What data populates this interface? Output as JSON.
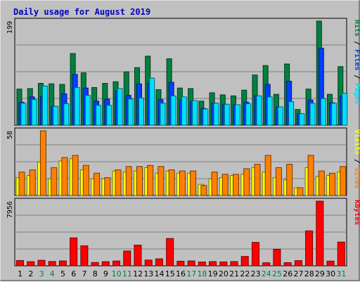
{
  "chart_data": {
    "type": "bar",
    "title": "Daily usage for August 2019",
    "days": [
      "1",
      "2",
      "3",
      "4",
      "5",
      "6",
      "7",
      "8",
      "9",
      "10",
      "11",
      "12",
      "13",
      "14",
      "15",
      "16",
      "17",
      "18",
      "19",
      "20",
      "21",
      "22",
      "23",
      "24",
      "25",
      "26",
      "27",
      "28",
      "29",
      "30",
      "31"
    ],
    "weekend_days": [
      "3",
      "4",
      "10",
      "11",
      "17",
      "18",
      "24",
      "25",
      "31"
    ],
    "colors": {
      "hits": "#008040",
      "files": "#0040ff",
      "pages": "#00e0ff",
      "visits": "#ffff00",
      "sites": "#ff8000",
      "kbytes": "#ff0000",
      "title": "#0000c0",
      "weekend": "#008040",
      "weekday": "#000000",
      "background": "#c0c0c0"
    },
    "panels": [
      {
        "name": "hits-files-pages",
        "ymax_label": "199",
        "ymax": 199,
        "axis_legend": [
          {
            "text": "Hits",
            "color": "#008040"
          },
          {
            "text": " / ",
            "color": "#000000"
          },
          {
            "text": "Files",
            "color": "#0040ff"
          },
          {
            "text": " / ",
            "color": "#000000"
          },
          {
            "text": "Pages",
            "color": "#00e0ff"
          }
        ],
        "series": [
          {
            "name": "Hits",
            "values": [
              69,
              70,
              80,
              79,
              78,
              137,
              100,
              72,
              80,
              83,
              102,
              110,
              132,
              68,
              127,
              71,
              70,
              46,
              62,
              58,
              56,
              67,
              96,
              114,
              59,
              117,
              30,
              69,
              199,
              59,
              112
            ]
          },
          {
            "name": "Files",
            "values": [
              44,
              54,
              55,
              36,
              60,
              97,
              71,
              46,
              50,
              65,
              57,
              79,
              80,
              49,
              82,
              48,
              45,
              32,
              42,
              40,
              39,
              44,
              56,
              78,
              35,
              84,
              22,
              48,
              147,
              43,
              56
            ]
          },
          {
            "name": "Pages",
            "values": [
              42,
              49,
              75,
              36,
              41,
              72,
              57,
              38,
              38,
              70,
              50,
              52,
              90,
              42,
              56,
              54,
              47,
              31,
              42,
              40,
              39,
              41,
              56,
              54,
              35,
              45,
              22,
              42,
              51,
              42,
              61
            ]
          }
        ]
      },
      {
        "name": "visits-sites",
        "ymax_label": "58",
        "ymax": 58,
        "axis_legend": [
          {
            "text": "Visits",
            "color": "#ffff00"
          },
          {
            "text": " / ",
            "color": "#000000"
          },
          {
            "text": "Sites",
            "color": "#ff8000"
          }
        ],
        "series": [
          {
            "name": "Visits",
            "values": [
              16,
              18,
              30,
              15,
              31,
              33,
              23,
              15,
              15,
              22,
              21,
              22,
              25,
              20,
              22,
              20,
              20,
              10,
              15,
              16,
              18,
              19,
              25,
              21,
              16,
              14,
              7,
              25,
              17,
              18,
              21
            ]
          },
          {
            "name": "Sites",
            "values": [
              21,
              23,
              58,
              25,
              34,
              36,
              27,
              20,
              16,
              23,
              26,
              26,
              27,
              26,
              23,
              22,
              22,
              9,
              21,
              19,
              19,
              24,
              28,
              36,
              25,
              28,
              7,
              36,
              22,
              20,
              26
            ]
          }
        ]
      },
      {
        "name": "kbytes",
        "ymax_label": "7956",
        "ymax": 7956,
        "axis_legend": [
          {
            "text": "KBytes",
            "color": "#ff0000"
          }
        ],
        "series": [
          {
            "name": "KBytes",
            "values": [
              650,
              510,
              680,
              530,
              600,
              3440,
              2460,
              410,
              510,
              590,
              1820,
              2550,
              710,
              860,
              3360,
              570,
              600,
              470,
              520,
              480,
              520,
              1150,
              2880,
              380,
              2040,
              390,
              640,
              4300,
              7956,
              580,
              2920
            ]
          }
        ]
      }
    ]
  }
}
